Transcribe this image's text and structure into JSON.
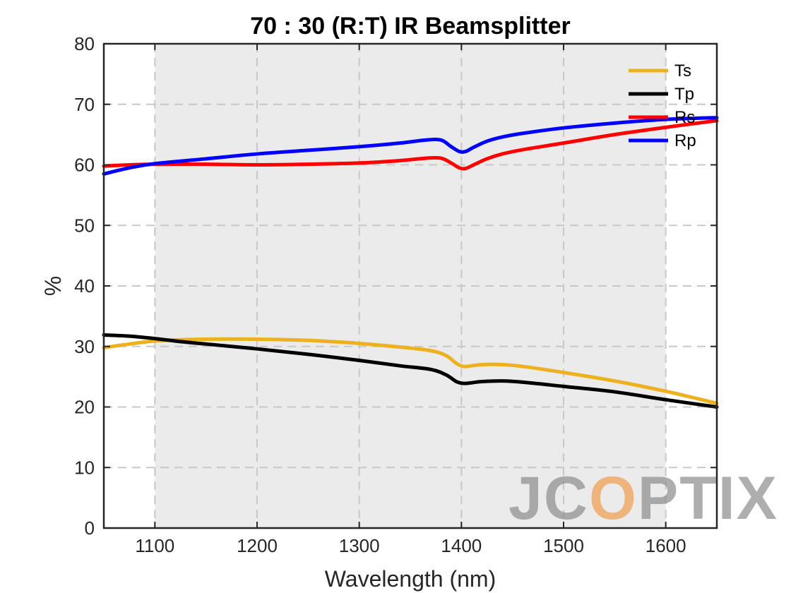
{
  "chart_data": {
    "type": "line",
    "title": "70 : 30 (R:T) IR Beamsplitter",
    "xlabel": "Wavelength (nm)",
    "ylabel": "%",
    "xlim": [
      1050,
      1650
    ],
    "ylim": [
      0,
      80
    ],
    "xticks": [
      1100,
      1200,
      1300,
      1400,
      1500,
      1600
    ],
    "yticks": [
      0,
      10,
      20,
      30,
      40,
      50,
      60,
      70,
      80
    ],
    "grid": true,
    "shaded_band": [
      1100,
      1600
    ],
    "legend_position": "top-right",
    "series": [
      {
        "name": "Ts",
        "color": "#EDB120",
        "x": [
          1050,
          1075,
          1100,
          1125,
          1150,
          1200,
          1250,
          1300,
          1340,
          1370,
          1385,
          1395,
          1402,
          1410,
          1420,
          1440,
          1460,
          1500,
          1550,
          1600,
          1650
        ],
        "y": [
          29.8,
          30.4,
          30.9,
          31.1,
          31.2,
          31.2,
          31.0,
          30.5,
          29.9,
          29.3,
          28.5,
          27.2,
          26.7,
          26.8,
          27.0,
          27.0,
          26.7,
          25.7,
          24.3,
          22.6,
          20.6
        ]
      },
      {
        "name": "Tp",
        "color": "#000000",
        "x": [
          1050,
          1075,
          1100,
          1125,
          1150,
          1200,
          1250,
          1300,
          1340,
          1370,
          1385,
          1395,
          1402,
          1410,
          1420,
          1440,
          1460,
          1500,
          1550,
          1600,
          1650
        ],
        "y": [
          31.9,
          31.7,
          31.3,
          30.8,
          30.4,
          29.6,
          28.7,
          27.7,
          26.8,
          26.2,
          25.3,
          24.2,
          23.9,
          24.0,
          24.2,
          24.3,
          24.1,
          23.4,
          22.5,
          21.2,
          20.0
        ]
      },
      {
        "name": "Rs",
        "color": "#FF0000",
        "x": [
          1050,
          1075,
          1100,
          1150,
          1200,
          1250,
          1300,
          1340,
          1365,
          1380,
          1390,
          1398,
          1404,
          1412,
          1425,
          1440,
          1460,
          1500,
          1550,
          1600,
          1650
        ],
        "y": [
          59.8,
          60.0,
          60.1,
          60.1,
          60.0,
          60.1,
          60.3,
          60.7,
          61.1,
          61.1,
          60.3,
          59.5,
          59.4,
          60.0,
          61.0,
          61.8,
          62.5,
          63.6,
          65.0,
          66.2,
          67.3
        ]
      },
      {
        "name": "Rp",
        "color": "#0000FF",
        "x": [
          1050,
          1075,
          1100,
          1150,
          1200,
          1250,
          1300,
          1340,
          1365,
          1380,
          1390,
          1398,
          1404,
          1412,
          1425,
          1440,
          1460,
          1500,
          1550,
          1600,
          1650
        ],
        "y": [
          58.5,
          59.5,
          60.2,
          61.0,
          61.8,
          62.4,
          63.0,
          63.6,
          64.1,
          64.1,
          63.0,
          62.2,
          62.2,
          62.9,
          63.9,
          64.6,
          65.2,
          66.1,
          66.9,
          67.5,
          67.8
        ]
      }
    ],
    "watermark": {
      "text_parts": [
        "JC",
        "O",
        "PTIX"
      ],
      "colors": [
        "#8c8c8c",
        "#F29E4C",
        "#8c8c8c"
      ],
      "opacity": 0.7
    }
  }
}
